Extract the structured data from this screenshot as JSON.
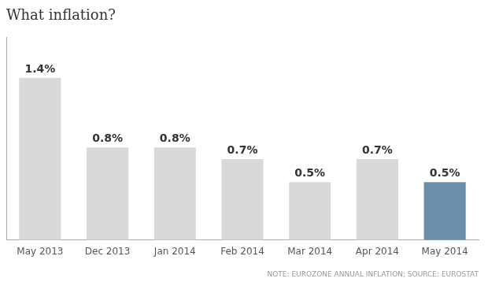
{
  "chart_data": {
    "type": "bar",
    "title": "What inflation?",
    "categories": [
      "May 2013",
      "Dec 2013",
      "Jan 2014",
      "Feb 2014",
      "Mar 2014",
      "Apr 2014",
      "May 2014"
    ],
    "values": [
      1.4,
      0.8,
      0.8,
      0.7,
      0.5,
      0.7,
      0.5
    ],
    "value_labels": [
      "1.4%",
      "0.8%",
      "0.8%",
      "0.7%",
      "0.5%",
      "0.7%",
      "0.5%"
    ],
    "data_labels": true,
    "colors": [
      "#d9d9d9",
      "#d9d9d9",
      "#d9d9d9",
      "#d9d9d9",
      "#d9d9d9",
      "#d9d9d9",
      "#6b8fa8"
    ],
    "ylim": [
      0,
      1.75
    ],
    "tick_labels": "x",
    "grid": false,
    "annotations": [
      "NOTE: EUROZONE ANNUAL INFLATION; SOURCE: EUROSTAT"
    ]
  }
}
